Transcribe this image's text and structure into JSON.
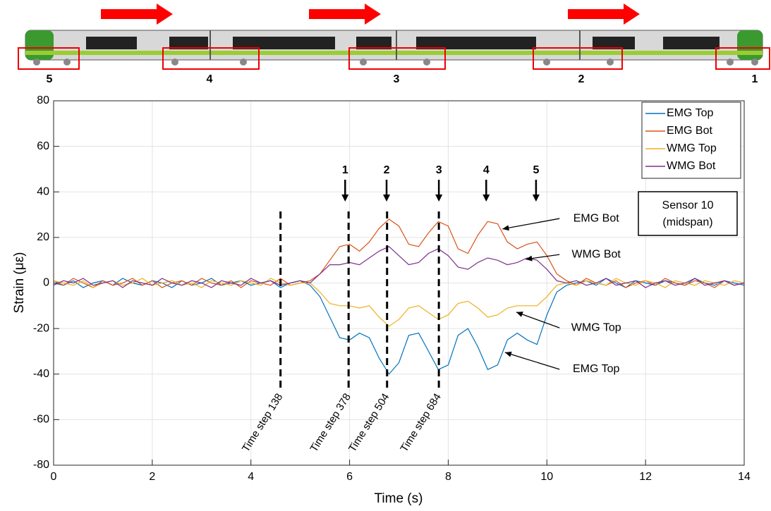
{
  "chart_data": {
    "type": "line",
    "xlabel": "Time (s)",
    "ylabel": "Strain (με)",
    "xlim": [
      0,
      14
    ],
    "ylim": [
      -80,
      80
    ],
    "xticks": [
      0,
      2,
      4,
      6,
      8,
      10,
      12,
      14
    ],
    "yticks": [
      -80,
      -60,
      -40,
      -20,
      0,
      20,
      40,
      60,
      80
    ],
    "grid": true,
    "legend_position": "upper right",
    "x": [
      0,
      0.2,
      0.4,
      0.6,
      0.8,
      1,
      1.2,
      1.4,
      1.6,
      1.8,
      2,
      2.2,
      2.4,
      2.6,
      2.8,
      3,
      3.2,
      3.4,
      3.6,
      3.8,
      4,
      4.2,
      4.4,
      4.6,
      4.8,
      5,
      5.2,
      5.4,
      5.6,
      5.8,
      6,
      6.2,
      6.4,
      6.6,
      6.8,
      7,
      7.2,
      7.4,
      7.6,
      7.8,
      8,
      8.2,
      8.4,
      8.6,
      8.8,
      9,
      9.2,
      9.4,
      9.6,
      9.8,
      10,
      10.2,
      10.4,
      10.6,
      10.8,
      11,
      11.2,
      11.4,
      11.6,
      11.8,
      12,
      12.2,
      12.4,
      12.6,
      12.8,
      13,
      13.2,
      13.4,
      13.6,
      13.8,
      14
    ],
    "series": [
      {
        "name": "EMG Top",
        "color": "#0072bd",
        "values": [
          0,
          -1,
          1,
          -2,
          0,
          1,
          -1,
          2,
          0,
          -1,
          1,
          0,
          -2,
          1,
          -1,
          0,
          2,
          -1,
          0,
          1,
          -1,
          0,
          1,
          -2,
          0,
          1,
          -1,
          -6,
          -15,
          -24,
          -25,
          -22,
          -24,
          -33,
          -40,
          -35,
          -23,
          -22,
          -30,
          -38,
          -36,
          -23,
          -20,
          -28,
          -38,
          -36,
          -25,
          -22,
          -25,
          -27,
          -14,
          -4,
          -1,
          0,
          1,
          -1,
          2,
          0,
          -2,
          1,
          0,
          -1,
          1,
          0,
          -1,
          2,
          0,
          -1,
          1,
          0,
          -1
        ]
      },
      {
        "name": "EMG Bot",
        "color": "#d95319",
        "values": [
          1,
          -1,
          2,
          0,
          -2,
          1,
          -1,
          0,
          2,
          -1,
          1,
          -2,
          0,
          1,
          -1,
          2,
          0,
          -1,
          1,
          -2,
          1,
          0,
          -1,
          2,
          -1,
          0,
          1,
          4,
          10,
          16,
          17,
          14,
          18,
          24,
          28,
          25,
          17,
          16,
          22,
          27,
          25,
          15,
          13,
          21,
          27,
          26,
          18,
          15,
          17,
          18,
          12,
          4,
          1,
          -1,
          2,
          0,
          -1,
          1,
          -2,
          0,
          1,
          -1,
          2,
          0,
          -1,
          1,
          0,
          -2,
          1,
          -1,
          0
        ]
      },
      {
        "name": "WMG Top",
        "color": "#edb120",
        "values": [
          1,
          0,
          -1,
          1,
          -2,
          0,
          1,
          -1,
          0,
          2,
          -1,
          0,
          1,
          -1,
          0,
          -2,
          1,
          0,
          -1,
          1,
          0,
          -1,
          2,
          0,
          -1,
          0,
          0,
          -4,
          -9,
          -10,
          -10,
          -11,
          -10,
          -15,
          -19,
          -16,
          -11,
          -10,
          -13,
          -16,
          -14,
          -9,
          -8,
          -11,
          -15,
          -14,
          -11,
          -10,
          -10,
          -10,
          -6,
          -1,
          0,
          -1,
          1,
          0,
          -1,
          2,
          0,
          -1,
          1,
          0,
          -2,
          1,
          0,
          -1,
          1,
          0,
          -1,
          1,
          0
        ]
      },
      {
        "name": "WMG Bot",
        "color": "#7e2f8e",
        "values": [
          -1,
          1,
          0,
          2,
          -1,
          0,
          1,
          -2,
          1,
          0,
          -1,
          2,
          0,
          -1,
          1,
          0,
          -2,
          1,
          0,
          -1,
          2,
          0,
          1,
          -1,
          0,
          1,
          0,
          4,
          8,
          8,
          9,
          8,
          11,
          14,
          16,
          12,
          8,
          9,
          13,
          15,
          12,
          7,
          6,
          9,
          11,
          10,
          8,
          9,
          11,
          10,
          6,
          1,
          0,
          1,
          -1,
          0,
          2,
          -1,
          0,
          1,
          -2,
          0,
          1,
          -1,
          0,
          2,
          -1,
          0,
          1,
          -1,
          0
        ]
      }
    ],
    "time_steps": [
      {
        "label": "Time step 138",
        "x": 4.6
      },
      {
        "label": "Time step 378",
        "x": 5.98
      },
      {
        "label": "Time step 504",
        "x": 6.76
      },
      {
        "label": "Time step 684",
        "x": 7.81
      }
    ],
    "axle_arrows": [
      {
        "label": "1",
        "x": 5.91
      },
      {
        "label": "2",
        "x": 6.75
      },
      {
        "label": "3",
        "x": 7.81
      },
      {
        "label": "4",
        "x": 8.77
      },
      {
        "label": "5",
        "x": 9.78
      }
    ],
    "curve_labels": [
      {
        "text": "EMG Bot",
        "x": 11.0,
        "y": 28.3,
        "target_x": 9.1,
        "target_y": 23.7
      },
      {
        "text": "WMG Bot",
        "x": 11.0,
        "y": 12.5,
        "target_x": 9.57,
        "target_y": 10.4
      },
      {
        "text": "WMG Top",
        "x": 11.0,
        "y": -19.7,
        "target_x": 9.38,
        "target_y": -12.8
      },
      {
        "text": "EMG Top",
        "x": 11.0,
        "y": -37.9,
        "target_x": 9.15,
        "target_y": -30.5
      }
    ],
    "sensor_box": [
      "Sensor 10",
      "(midspan)"
    ],
    "bogie_labels": [
      "5",
      "4",
      "3",
      "2",
      "1"
    ]
  }
}
